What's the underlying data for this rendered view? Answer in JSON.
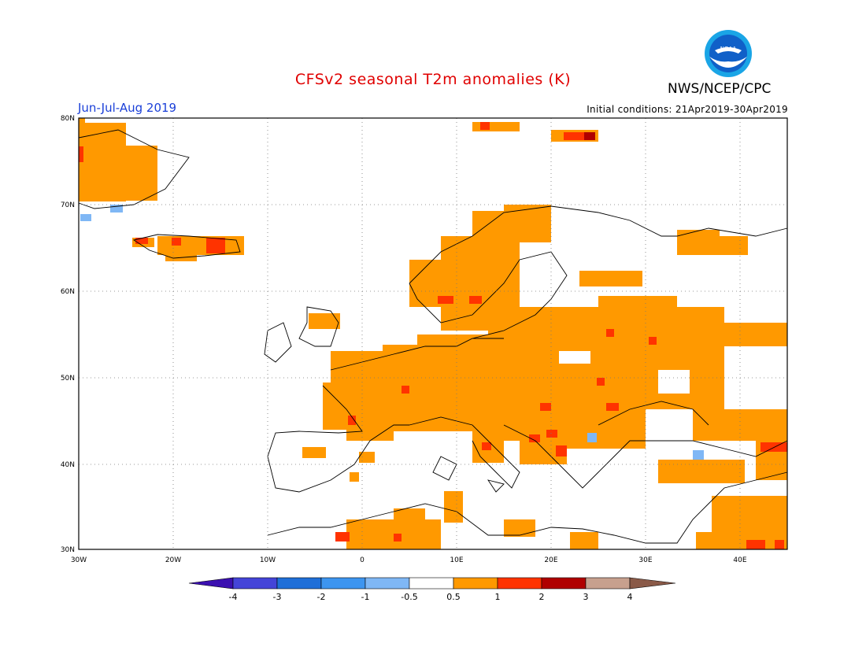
{
  "header": {
    "title": "CFSv2 seasonal T2m anomalies (K)",
    "agency": "NWS/NCEP/CPC",
    "season": "Jun-Jul-Aug 2019",
    "init_conditions": "Initial conditions: 21Apr2019-30Apr2019"
  },
  "map": {
    "lon_range": [
      -30,
      45
    ],
    "lat_range": [
      30,
      80
    ],
    "lon_ticks": [
      "30W",
      "20W",
      "10W",
      "0",
      "10E",
      "20E",
      "30E",
      "40E"
    ],
    "lat_ticks": [
      "30N",
      "40N",
      "50N",
      "60N",
      "70N",
      "80N"
    ],
    "gridlines": "dotted"
  },
  "colorbar": {
    "labels": [
      "-4",
      "-3",
      "-2",
      "-1",
      "-0.5",
      "0.5",
      "1",
      "2",
      "3",
      "4"
    ],
    "colors": [
      "#3b10b0",
      "#4444d8",
      "#1f6fd8",
      "#3d95f0",
      "#7fb7f5",
      "#ffffff",
      "#ff9900",
      "#ff3300",
      "#b00000",
      "#c7a08e",
      "#8a5a48"
    ]
  }
}
